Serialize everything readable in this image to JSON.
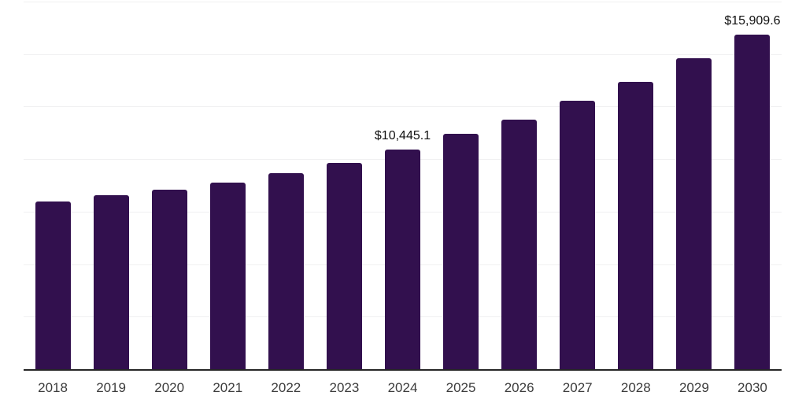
{
  "chart_data": {
    "type": "bar",
    "title": "",
    "xlabel": "",
    "ylabel": "",
    "categories": [
      "2018",
      "2019",
      "2020",
      "2021",
      "2022",
      "2023",
      "2024",
      "2025",
      "2026",
      "2027",
      "2028",
      "2029",
      "2030"
    ],
    "values": [
      7980,
      8280,
      8560,
      8880,
      9330,
      9815,
      10445.1,
      11200,
      11870,
      12770,
      13670,
      14790,
      15909.6
    ],
    "data_labels": {
      "2024": "$10,445.1",
      "2030": "$15,909.6"
    },
    "ylim": [
      0,
      17500
    ],
    "gridline_step": 2500,
    "grid_on": true,
    "legend_position": "none",
    "y_axis_tick_labels_visible": false,
    "colors": {
      "bar": "#32104e",
      "gridline": "#f0f0f1",
      "axis_line": "#262626",
      "tick_label": "#3c3c3c",
      "data_label": "#111111",
      "background": "#ffffff"
    }
  }
}
